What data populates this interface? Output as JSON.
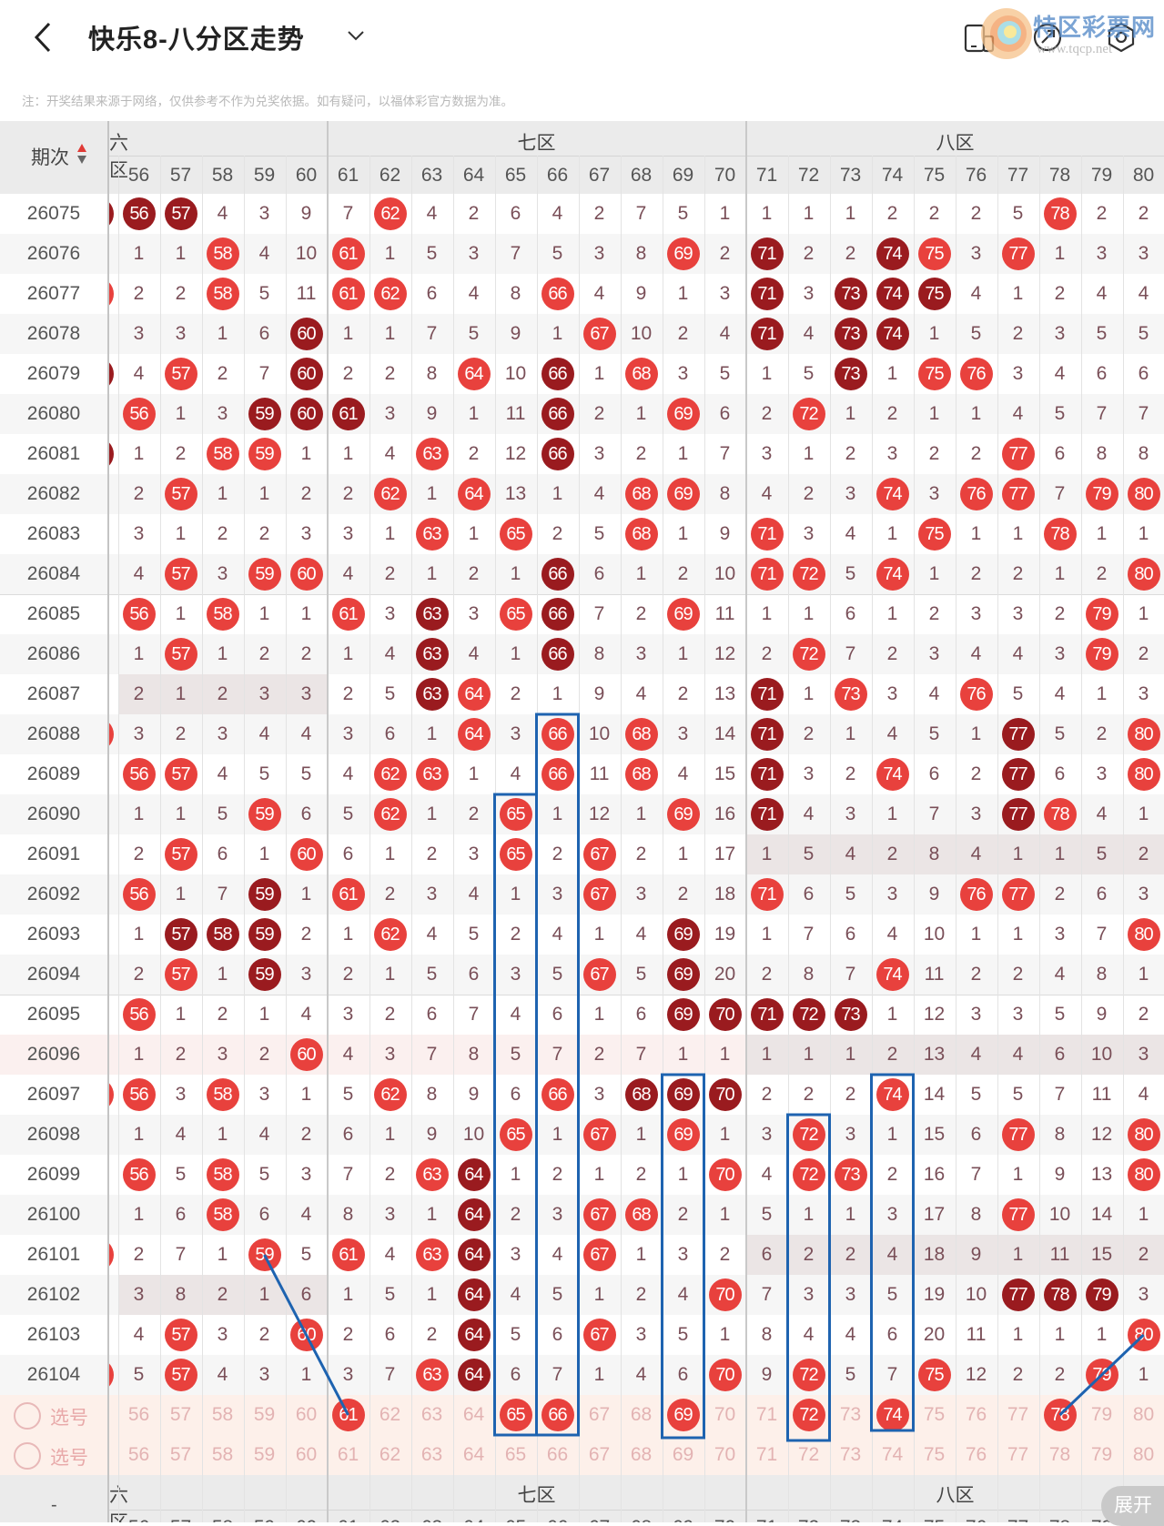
{
  "header": {
    "title": "快乐8-八分区走势",
    "back_icon": "chevron-left-icon",
    "dropdown_icon": "chevron-down-icon",
    "right_icons": [
      "device-icon",
      "share-icon",
      "settings-icon"
    ]
  },
  "watermark": {
    "name": "特区彩票网",
    "url": "www.tqcp.net"
  },
  "notice": "注：开奖结果来源于网络，仅供参考不作为兑奖依据。如有疑问，以福体彩官方数据为准。",
  "colors": {
    "ball_red": "#e8413d",
    "ball_dark": "#9a1b1f",
    "annotation_blue": "#1e63b0",
    "select_bg": "#fdf0ea"
  },
  "table": {
    "period_header": "期次",
    "sort_icon": "sort-updown-icon",
    "zones": [
      {
        "label": "六区"
      },
      {
        "label": "七区"
      },
      {
        "label": "八区"
      }
    ],
    "columns": [
      "56",
      "57",
      "58",
      "59",
      "60",
      "61",
      "62",
      "63",
      "64",
      "65",
      "66",
      "67",
      "68",
      "69",
      "70",
      "71",
      "72",
      "73",
      "74",
      "75",
      "76",
      "77",
      "78",
      "79",
      "80"
    ],
    "rows": [
      {
        "period": "26075",
        "edge": "d",
        "cells": [
          "56",
          "57",
          "4",
          "3",
          "9",
          "7",
          "62",
          "4",
          "2",
          "6",
          "4",
          "2",
          "7",
          "5",
          "1",
          "1",
          "1",
          "1",
          "2",
          "2",
          "2",
          "5",
          "78",
          "2",
          "2"
        ],
        "balls": "dd... .r........ .......r.."
      },
      {
        "period": "26076",
        "edge": "",
        "cells": [
          "1",
          "1",
          "58",
          "4",
          "10",
          "61",
          "1",
          "5",
          "3",
          "7",
          "5",
          "3",
          "8",
          "69",
          "2",
          "71",
          "2",
          "2",
          "74",
          "75",
          "3",
          "77",
          "1",
          "3",
          "3"
        ],
        "balls": "..r.. r.......r. d..dr.r..."
      },
      {
        "period": "26077",
        "edge": "r",
        "cells": [
          "2",
          "2",
          "58",
          "5",
          "11",
          "61",
          "62",
          "6",
          "4",
          "8",
          "66",
          "4",
          "9",
          "1",
          "3",
          "71",
          "3",
          "73",
          "74",
          "75",
          "4",
          "1",
          "2",
          "4",
          "4"
        ],
        "balls": "..r.. rr...r.... d.ddd....."
      },
      {
        "period": "26078",
        "edge": "",
        "cells": [
          "3",
          "3",
          "1",
          "6",
          "60",
          "1",
          "1",
          "7",
          "5",
          "9",
          "1",
          "67",
          "10",
          "2",
          "4",
          "71",
          "4",
          "73",
          "74",
          "1",
          "5",
          "2",
          "3",
          "5",
          "5"
        ],
        "balls": "....d ......r... d.dd......"
      },
      {
        "period": "26079",
        "edge": "d",
        "cells": [
          "4",
          "57",
          "2",
          "7",
          "60",
          "2",
          "2",
          "8",
          "64",
          "10",
          "66",
          "1",
          "68",
          "3",
          "5",
          "1",
          "5",
          "73",
          "1",
          "75",
          "76",
          "3",
          "4",
          "6",
          "6"
        ],
        "balls": ".r..d ...r.d.r.. ..d.rr...."
      },
      {
        "period": "26080",
        "edge": "",
        "cells": [
          "56",
          "1",
          "3",
          "59",
          "60",
          "61",
          "3",
          "9",
          "1",
          "11",
          "66",
          "2",
          "1",
          "69",
          "6",
          "2",
          "72",
          "1",
          "2",
          "1",
          "1",
          "4",
          "5",
          "7",
          "7"
        ],
        "balls": "r..dd d....d..r. .r........"
      },
      {
        "period": "26081",
        "edge": "d",
        "cells": [
          "1",
          "2",
          "58",
          "59",
          "1",
          "1",
          "4",
          "63",
          "2",
          "12",
          "66",
          "3",
          "2",
          "1",
          "7",
          "3",
          "1",
          "2",
          "3",
          "2",
          "2",
          "77",
          "6",
          "8",
          "8"
        ],
        "balls": "..rr. ..r..d.... ......r..."
      },
      {
        "period": "26082",
        "edge": "",
        "cells": [
          "2",
          "57",
          "1",
          "1",
          "2",
          "2",
          "62",
          "1",
          "64",
          "13",
          "1",
          "4",
          "68",
          "69",
          "8",
          "4",
          "2",
          "3",
          "74",
          "3",
          "76",
          "77",
          "7",
          "79",
          "80"
        ],
        "balls": ".r... .r.r...rr. ...r.rr.rr"
      },
      {
        "period": "26083",
        "edge": "",
        "cells": [
          "3",
          "1",
          "2",
          "2",
          "3",
          "3",
          "1",
          "63",
          "1",
          "65",
          "2",
          "5",
          "68",
          "1",
          "9",
          "71",
          "3",
          "4",
          "1",
          "75",
          "1",
          "1",
          "78",
          "1",
          "1"
        ],
        "balls": "..... ..r.r..r.. r...r..r.."
      },
      {
        "period": "26084",
        "edge": "",
        "cells": [
          "4",
          "57",
          "3",
          "59",
          "60",
          "4",
          "2",
          "1",
          "2",
          "1",
          "66",
          "6",
          "1",
          "2",
          "10",
          "71",
          "72",
          "5",
          "74",
          "1",
          "2",
          "2",
          "1",
          "2",
          "80"
        ],
        "balls": ".r.rr .....d.... rr.r.....r"
      },
      {
        "period": "26085",
        "edge": "",
        "cells": [
          "56",
          "1",
          "58",
          "1",
          "1",
          "61",
          "3",
          "63",
          "3",
          "65",
          "66",
          "7",
          "2",
          "69",
          "11",
          "1",
          "1",
          "6",
          "1",
          "2",
          "3",
          "3",
          "2",
          "79",
          "1"
        ],
        "balls": "r.r.. r.d.rd..r. ........r."
      },
      {
        "period": "26086",
        "edge": "",
        "cells": [
          "1",
          "57",
          "1",
          "2",
          "2",
          "1",
          "4",
          "63",
          "4",
          "1",
          "66",
          "8",
          "3",
          "1",
          "12",
          "2",
          "72",
          "7",
          "2",
          "3",
          "4",
          "4",
          "3",
          "79",
          "2"
        ],
        "balls": ".r... ..d..d.... .r......r."
      },
      {
        "period": "26087",
        "edge": "",
        "shade": [
          0
        ],
        "cells": [
          "2",
          "1",
          "2",
          "3",
          "3",
          "2",
          "5",
          "63",
          "64",
          "2",
          "1",
          "9",
          "4",
          "2",
          "13",
          "71",
          "1",
          "73",
          "3",
          "4",
          "76",
          "5",
          "4",
          "1",
          "3"
        ],
        "balls": "..... ..dr...... d.r..r...."
      },
      {
        "period": "26088",
        "edge": "r",
        "cells": [
          "3",
          "2",
          "3",
          "4",
          "4",
          "3",
          "6",
          "1",
          "64",
          "3",
          "66",
          "10",
          "68",
          "3",
          "14",
          "71",
          "2",
          "1",
          "4",
          "5",
          "1",
          "77",
          "5",
          "2",
          "80"
        ],
        "balls": "..... ...r.r.r.. d.....d..r"
      },
      {
        "period": "26089",
        "edge": "",
        "cells": [
          "56",
          "57",
          "4",
          "5",
          "5",
          "4",
          "62",
          "63",
          "1",
          "4",
          "66",
          "11",
          "68",
          "4",
          "15",
          "71",
          "3",
          "2",
          "74",
          "6",
          "2",
          "77",
          "6",
          "3",
          "80"
        ],
        "balls": "rr... .rr..r.r.. d..r..d..r"
      },
      {
        "period": "26090",
        "edge": "",
        "cells": [
          "1",
          "1",
          "5",
          "59",
          "6",
          "5",
          "62",
          "1",
          "2",
          "65",
          "1",
          "12",
          "1",
          "69",
          "16",
          "71",
          "4",
          "3",
          "1",
          "7",
          "3",
          "77",
          "78",
          "4",
          "1"
        ],
        "balls": "...r. .r..r...r. d.....dr.."
      },
      {
        "period": "26091",
        "edge": "",
        "shade": [
          2
        ],
        "cells": [
          "2",
          "57",
          "6",
          "1",
          "60",
          "6",
          "1",
          "2",
          "3",
          "65",
          "2",
          "67",
          "2",
          "1",
          "17",
          "1",
          "5",
          "4",
          "2",
          "8",
          "4",
          "1",
          "1",
          "5",
          "2"
        ],
        "balls": ".r..r ....r.r... .........."
      },
      {
        "period": "26092",
        "edge": "",
        "cells": [
          "56",
          "1",
          "7",
          "59",
          "1",
          "61",
          "2",
          "3",
          "4",
          "1",
          "3",
          "67",
          "3",
          "2",
          "18",
          "71",
          "6",
          "5",
          "3",
          "9",
          "76",
          "77",
          "2",
          "6",
          "3"
        ],
        "balls": "r..d. r.....r... r....rr..."
      },
      {
        "period": "26093",
        "edge": "",
        "cells": [
          "1",
          "57",
          "58",
          "59",
          "2",
          "1",
          "62",
          "4",
          "5",
          "2",
          "4",
          "1",
          "4",
          "69",
          "19",
          "1",
          "7",
          "6",
          "4",
          "10",
          "1",
          "1",
          "3",
          "7",
          "80"
        ],
        "balls": ".ddd. .r......d. .........r"
      },
      {
        "period": "26094",
        "edge": "",
        "cells": [
          "2",
          "57",
          "1",
          "59",
          "3",
          "2",
          "1",
          "5",
          "6",
          "3",
          "5",
          "67",
          "5",
          "69",
          "20",
          "2",
          "8",
          "7",
          "74",
          "11",
          "2",
          "2",
          "4",
          "8",
          "1"
        ],
        "balls": ".r.d. ......r.d. ...r......"
      },
      {
        "period": "26095",
        "edge": "",
        "cells": [
          "56",
          "1",
          "2",
          "1",
          "4",
          "3",
          "2",
          "6",
          "7",
          "4",
          "6",
          "1",
          "6",
          "69",
          "70",
          "71",
          "72",
          "73",
          "1",
          "12",
          "3",
          "3",
          "5",
          "9",
          "2"
        ],
        "balls": "r.... ........dd ddd......."
      },
      {
        "period": "26096",
        "edge": "",
        "pink": true,
        "shade": [
          2
        ],
        "cells": [
          "1",
          "2",
          "3",
          "2",
          "60",
          "4",
          "3",
          "7",
          "8",
          "5",
          "7",
          "2",
          "7",
          "1",
          "1",
          "1",
          "1",
          "1",
          "2",
          "13",
          "4",
          "4",
          "6",
          "10",
          "3"
        ],
        "balls": "....r .......... .........."
      },
      {
        "period": "26097",
        "edge": "r",
        "cells": [
          "56",
          "3",
          "58",
          "3",
          "1",
          "5",
          "62",
          "8",
          "9",
          "6",
          "66",
          "3",
          "68",
          "69",
          "70",
          "2",
          "2",
          "2",
          "74",
          "14",
          "5",
          "5",
          "7",
          "11",
          "4"
        ],
        "balls": "r.r.. .r...r.ddd ...r......"
      },
      {
        "period": "26098",
        "edge": "",
        "cells": [
          "1",
          "4",
          "1",
          "4",
          "2",
          "6",
          "1",
          "9",
          "10",
          "65",
          "1",
          "67",
          "1",
          "69",
          "1",
          "3",
          "72",
          "3",
          "1",
          "15",
          "6",
          "77",
          "8",
          "12",
          "80"
        ],
        "balls": "..... ....r.r.r. .r....r..r"
      },
      {
        "period": "26099",
        "edge": "",
        "cells": [
          "56",
          "5",
          "58",
          "5",
          "3",
          "7",
          "2",
          "63",
          "64",
          "1",
          "2",
          "1",
          "2",
          "1",
          "70",
          "4",
          "72",
          "73",
          "2",
          "16",
          "7",
          "1",
          "9",
          "13",
          "80"
        ],
        "balls": "r.r.. ..rd.....r .rr......r"
      },
      {
        "period": "26100",
        "edge": "",
        "cells": [
          "1",
          "6",
          "58",
          "6",
          "4",
          "8",
          "3",
          "1",
          "64",
          "2",
          "3",
          "67",
          "68",
          "2",
          "1",
          "5",
          "1",
          "1",
          "3",
          "17",
          "8",
          "77",
          "10",
          "14",
          "1"
        ],
        "balls": "..r.. ...d..rr.. ......r..."
      },
      {
        "period": "26101",
        "edge": "r",
        "shade": [
          2
        ],
        "cells": [
          "2",
          "7",
          "1",
          "59",
          "5",
          "61",
          "4",
          "63",
          "64",
          "3",
          "4",
          "67",
          "1",
          "3",
          "2",
          "6",
          "2",
          "2",
          "4",
          "18",
          "9",
          "1",
          "11",
          "15",
          "2"
        ],
        "balls": "...r. r.rd..r... .........."
      },
      {
        "period": "26102",
        "edge": "",
        "shade": [
          0
        ],
        "cells": [
          "3",
          "8",
          "2",
          "1",
          "6",
          "1",
          "5",
          "1",
          "64",
          "4",
          "5",
          "1",
          "2",
          "4",
          "70",
          "7",
          "3",
          "3",
          "5",
          "19",
          "10",
          "77",
          "78",
          "79",
          "3"
        ],
        "balls": "..... ...d.....r ......ddd."
      },
      {
        "period": "26103",
        "edge": "",
        "cells": [
          "4",
          "57",
          "3",
          "2",
          "60",
          "2",
          "6",
          "2",
          "64",
          "5",
          "6",
          "67",
          "3",
          "5",
          "1",
          "8",
          "4",
          "4",
          "6",
          "20",
          "11",
          "1",
          "1",
          "1",
          "80"
        ],
        "balls": ".r..r ...d..r... .........r"
      },
      {
        "period": "26104",
        "edge": "r",
        "cells": [
          "5",
          "57",
          "4",
          "3",
          "1",
          "3",
          "7",
          "63",
          "64",
          "6",
          "7",
          "1",
          "4",
          "6",
          "70",
          "9",
          "72",
          "5",
          "7",
          "75",
          "12",
          "2",
          "2",
          "79",
          "1"
        ],
        "balls": ".r... ..rd.....r .r..r...r."
      }
    ],
    "select_label": "选号",
    "select_rows": [
      {
        "picked": [
          "61",
          "65",
          "66",
          "69",
          "72",
          "74",
          "78"
        ]
      },
      {
        "picked": []
      }
    ]
  },
  "bottom": {
    "dash": "-",
    "expand_label": "展开"
  }
}
